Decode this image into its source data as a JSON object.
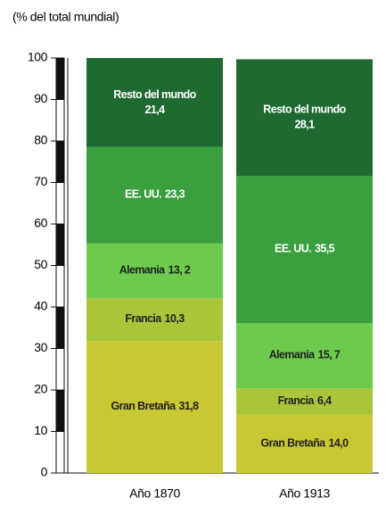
{
  "chart_data": {
    "type": "stacked_bar",
    "y_axis_title": "(% del total mundial)",
    "categories": [
      "Año 1870",
      "Año 1913"
    ],
    "series": [
      {
        "name": "Gran Bretaña",
        "color": "#c9c832",
        "values": [
          31.8,
          14.0
        ],
        "value_labels": [
          "31,8",
          "14,0"
        ]
      },
      {
        "name": "Francia",
        "color": "#a9c63b",
        "values": [
          10.3,
          6.4
        ],
        "value_labels": [
          "10,3",
          "6,4"
        ]
      },
      {
        "name": "Alemania",
        "color": "#6ccb4c",
        "values": [
          13.2,
          15.7
        ],
        "value_labels": [
          "13, 2",
          "15, 7"
        ]
      },
      {
        "name": "EE. UU.",
        "color": "#3a9f3f",
        "values": [
          23.3,
          35.5
        ],
        "value_labels": [
          "23,3",
          "35,5"
        ]
      },
      {
        "name": "Resto del mundo",
        "color": "#1f6a31",
        "values": [
          21.4,
          28.1
        ],
        "value_labels": [
          "21,4",
          "28,1"
        ]
      }
    ],
    "ylim": [
      0,
      100
    ],
    "yticks": [
      0,
      10,
      20,
      30,
      40,
      50,
      60,
      70,
      80,
      90,
      100
    ]
  }
}
